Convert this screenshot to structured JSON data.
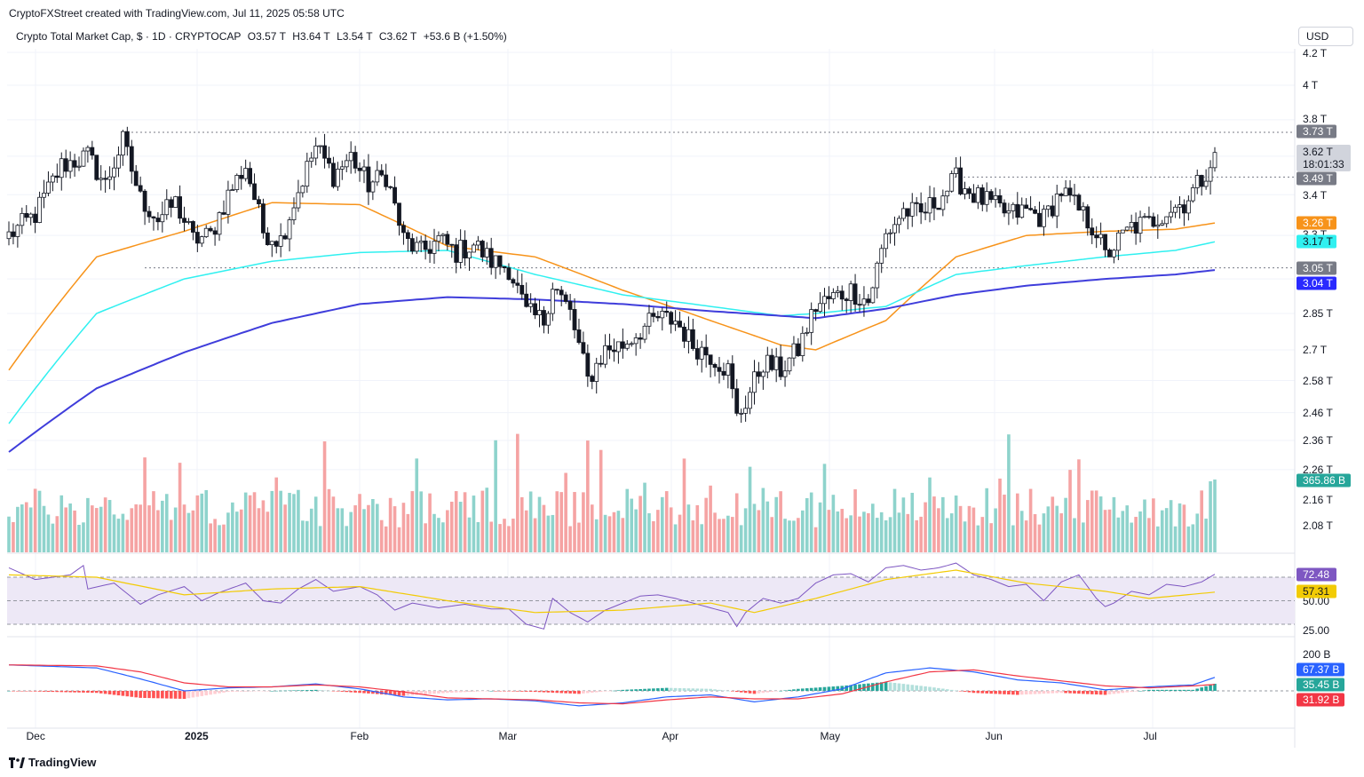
{
  "header": {
    "attribution": "CryptoFXStreet created with TradingView.com, Jul 11, 2025 05:58 UTC",
    "symbol": "Crypto Total Market Cap, $ · 1D · CRYPTOCAP",
    "open": "O3.57 T",
    "high": "H3.64 T",
    "low": "L3.54 T",
    "close": "C3.62 T",
    "change": "+53.6 B (+1.50%)"
  },
  "currency_button": "USD",
  "footer": {
    "logo_text": "TradingView"
  },
  "colors": {
    "up": "#26a69a",
    "down": "#ef5350",
    "candle_up_fill": "#ffffff",
    "candle_body": "#131722",
    "ma50": "#f7931a",
    "ma100": "#30f0f0",
    "ma200": "#3f3ddb",
    "rsi_line": "#7e57c2",
    "rsi_ma": "#f2cb05",
    "macd_line": "#2962ff",
    "signal_line": "#f23645"
  },
  "price_axis": {
    "ticks": [
      "4.2 T",
      "4 T",
      "3.8 T",
      "3.4 T",
      "3.3 T",
      "2.85 T",
      "2.7 T",
      "2.58 T",
      "2.46 T",
      "2.36 T",
      "2.26 T",
      "2.16 T",
      "2.08 T"
    ],
    "tags": [
      {
        "name": "resistance",
        "label": "3.73 T",
        "bg": "#787b86",
        "fg": "#ffffff"
      },
      {
        "name": "last-price",
        "label": "3.62 T",
        "sub": "18:01:33",
        "bg": "#d1d4dc",
        "fg": "#131722"
      },
      {
        "name": "mid-level",
        "label": "3.49 T",
        "bg": "#787b86",
        "fg": "#ffffff"
      },
      {
        "name": "ma50",
        "label": "3.26 T",
        "bg": "#f7931a",
        "fg": "#ffffff"
      },
      {
        "name": "ma100",
        "label": "3.17 T",
        "bg": "#30f0f0",
        "fg": "#131722"
      },
      {
        "name": "support",
        "label": "3.05 T",
        "bg": "#787b86",
        "fg": "#ffffff"
      },
      {
        "name": "ma200",
        "label": "3.04 T",
        "bg": "#2a2aff",
        "fg": "#ffffff"
      },
      {
        "name": "volume",
        "label": "365.86 B",
        "bg": "#26a69a",
        "fg": "#ffffff"
      }
    ]
  },
  "rsi_axis": {
    "ticks": [
      "50.00",
      "25.00"
    ],
    "tags": [
      {
        "name": "rsi",
        "label": "72.48",
        "bg": "#7e57c2",
        "fg": "#ffffff"
      },
      {
        "name": "rsi-ma",
        "label": "57.31",
        "bg": "#f2cb05",
        "fg": "#131722"
      }
    ]
  },
  "macd_axis": {
    "ticks": [
      "200 B"
    ],
    "tags": [
      {
        "name": "macd",
        "label": "67.37 B",
        "bg": "#2962ff",
        "fg": "#ffffff"
      },
      {
        "name": "histogram",
        "label": "35.45 B",
        "bg": "#26a69a",
        "fg": "#ffffff"
      },
      {
        "name": "signal",
        "label": "31.92 B",
        "bg": "#f23645",
        "fg": "#ffffff"
      }
    ]
  },
  "time_axis": [
    "Dec",
    "2025",
    "Feb",
    "Mar",
    "Apr",
    "May",
    "Jun",
    "Jul"
  ],
  "chart_data": {
    "type": "candlestick",
    "title": "Crypto Total Market Cap, $ · 1D · CRYPTOCAP",
    "unit": "T",
    "ylim": [
      2.2,
      4.25
    ],
    "y_scale": "log",
    "levels": [
      {
        "name": "resistance",
        "value": 3.73
      },
      {
        "name": "mid-level",
        "value": 3.49
      },
      {
        "name": "support",
        "value": 3.05
      }
    ],
    "x_months": [
      "Dec",
      "2025",
      "Feb",
      "Mar",
      "Apr",
      "May",
      "Jun",
      "Jul"
    ],
    "close_anchors": [
      [
        0,
        3.2
      ],
      [
        6,
        3.3
      ],
      [
        12,
        3.55
      ],
      [
        18,
        3.6
      ],
      [
        22,
        3.45
      ],
      [
        26,
        3.68
      ],
      [
        30,
        3.38
      ],
      [
        34,
        3.28
      ],
      [
        38,
        3.36
      ],
      [
        42,
        3.18
      ],
      [
        46,
        3.2
      ],
      [
        50,
        3.4
      ],
      [
        54,
        3.55
      ],
      [
        58,
        3.22
      ],
      [
        62,
        3.18
      ],
      [
        66,
        3.42
      ],
      [
        70,
        3.65
      ],
      [
        74,
        3.5
      ],
      [
        78,
        3.6
      ],
      [
        82,
        3.45
      ],
      [
        86,
        3.5
      ],
      [
        90,
        3.18
      ],
      [
        94,
        3.12
      ],
      [
        98,
        3.18
      ],
      [
        102,
        3.12
      ],
      [
        106,
        3.16
      ],
      [
        110,
        3.08
      ],
      [
        114,
        3.05
      ],
      [
        118,
        2.85
      ],
      [
        122,
        2.82
      ],
      [
        124,
        2.98
      ],
      [
        128,
        2.85
      ],
      [
        132,
        2.58
      ],
      [
        136,
        2.7
      ],
      [
        140,
        2.72
      ],
      [
        144,
        2.78
      ],
      [
        148,
        2.83
      ],
      [
        152,
        2.82
      ],
      [
        156,
        2.72
      ],
      [
        160,
        2.68
      ],
      [
        164,
        2.62
      ],
      [
        166,
        2.44
      ],
      [
        168,
        2.5
      ],
      [
        172,
        2.65
      ],
      [
        176,
        2.62
      ],
      [
        180,
        2.7
      ],
      [
        184,
        2.88
      ],
      [
        188,
        2.92
      ],
      [
        192,
        2.95
      ],
      [
        196,
        2.9
      ],
      [
        200,
        3.2
      ],
      [
        204,
        3.32
      ],
      [
        208,
        3.3
      ],
      [
        212,
        3.38
      ],
      [
        216,
        3.48
      ],
      [
        220,
        3.4
      ],
      [
        224,
        3.35
      ],
      [
        228,
        3.3
      ],
      [
        232,
        3.32
      ],
      [
        236,
        3.28
      ],
      [
        240,
        3.42
      ],
      [
        244,
        3.32
      ],
      [
        248,
        3.22
      ],
      [
        250,
        3.1
      ],
      [
        252,
        3.15
      ],
      [
        256,
        3.24
      ],
      [
        260,
        3.26
      ],
      [
        264,
        3.32
      ],
      [
        268,
        3.36
      ],
      [
        272,
        3.48
      ],
      [
        274,
        3.57
      ],
      [
        275,
        3.62
      ]
    ],
    "series": [
      {
        "name": "MA50",
        "values": [
          [
            0,
            2.62
          ],
          [
            20,
            3.1
          ],
          [
            40,
            3.22
          ],
          [
            60,
            3.36
          ],
          [
            80,
            3.35
          ],
          [
            100,
            3.15
          ],
          [
            120,
            3.1
          ],
          [
            140,
            2.95
          ],
          [
            160,
            2.82
          ],
          [
            176,
            2.72
          ],
          [
            184,
            2.7
          ],
          [
            200,
            2.82
          ],
          [
            216,
            3.1
          ],
          [
            232,
            3.2
          ],
          [
            250,
            3.22
          ],
          [
            266,
            3.23
          ],
          [
            275,
            3.26
          ]
        ]
      },
      {
        "name": "MA100",
        "values": [
          [
            0,
            2.42
          ],
          [
            20,
            2.85
          ],
          [
            40,
            3.0
          ],
          [
            60,
            3.08
          ],
          [
            80,
            3.12
          ],
          [
            100,
            3.13
          ],
          [
            120,
            3.02
          ],
          [
            140,
            2.93
          ],
          [
            160,
            2.88
          ],
          [
            176,
            2.84
          ],
          [
            184,
            2.85
          ],
          [
            200,
            2.88
          ],
          [
            216,
            3.02
          ],
          [
            232,
            3.06
          ],
          [
            250,
            3.1
          ],
          [
            266,
            3.13
          ],
          [
            275,
            3.17
          ]
        ]
      },
      {
        "name": "MA200",
        "values": [
          [
            0,
            2.32
          ],
          [
            20,
            2.55
          ],
          [
            40,
            2.69
          ],
          [
            60,
            2.81
          ],
          [
            80,
            2.89
          ],
          [
            100,
            2.92
          ],
          [
            120,
            2.91
          ],
          [
            140,
            2.89
          ],
          [
            160,
            2.86
          ],
          [
            176,
            2.84
          ],
          [
            184,
            2.83
          ],
          [
            200,
            2.87
          ],
          [
            216,
            2.93
          ],
          [
            232,
            2.97
          ],
          [
            250,
            3.0
          ],
          [
            266,
            3.02
          ],
          [
            275,
            3.04
          ]
        ]
      },
      {
        "name": "Volume",
        "last": "365.86 B"
      },
      {
        "name": "RSI",
        "last": 72.48,
        "values": [
          [
            0,
            78
          ],
          [
            6,
            68
          ],
          [
            14,
            72
          ],
          [
            17,
            80
          ],
          [
            18,
            60
          ],
          [
            24,
            65
          ],
          [
            30,
            47
          ],
          [
            34,
            55
          ],
          [
            40,
            62
          ],
          [
            44,
            50
          ],
          [
            48,
            57
          ],
          [
            54,
            65
          ],
          [
            58,
            50
          ],
          [
            62,
            48
          ],
          [
            66,
            60
          ],
          [
            70,
            68
          ],
          [
            74,
            58
          ],
          [
            80,
            62
          ],
          [
            84,
            55
          ],
          [
            88,
            42
          ],
          [
            92,
            48
          ],
          [
            98,
            44
          ],
          [
            104,
            47
          ],
          [
            110,
            43
          ],
          [
            114,
            43
          ],
          [
            118,
            30
          ],
          [
            122,
            26
          ],
          [
            124,
            52
          ],
          [
            128,
            40
          ],
          [
            132,
            32
          ],
          [
            136,
            42
          ],
          [
            140,
            48
          ],
          [
            144,
            54
          ],
          [
            148,
            55
          ],
          [
            152,
            52
          ],
          [
            156,
            48
          ],
          [
            160,
            44
          ],
          [
            164,
            40
          ],
          [
            166,
            28
          ],
          [
            168,
            40
          ],
          [
            172,
            52
          ],
          [
            176,
            48
          ],
          [
            180,
            52
          ],
          [
            184,
            65
          ],
          [
            188,
            72
          ],
          [
            192,
            73
          ],
          [
            196,
            66
          ],
          [
            200,
            78
          ],
          [
            204,
            80
          ],
          [
            208,
            76
          ],
          [
            212,
            78
          ],
          [
            216,
            82
          ],
          [
            220,
            72
          ],
          [
            224,
            68
          ],
          [
            228,
            62
          ],
          [
            232,
            64
          ],
          [
            236,
            50
          ],
          [
            240,
            66
          ],
          [
            244,
            72
          ],
          [
            248,
            52
          ],
          [
            250,
            45
          ],
          [
            252,
            48
          ],
          [
            256,
            58
          ],
          [
            260,
            55
          ],
          [
            264,
            64
          ],
          [
            268,
            62
          ],
          [
            272,
            66
          ],
          [
            275,
            72.48
          ]
        ]
      },
      {
        "name": "RSI MA",
        "last": 57.31,
        "values": [
          [
            0,
            72
          ],
          [
            20,
            70
          ],
          [
            40,
            55
          ],
          [
            60,
            60
          ],
          [
            80,
            62
          ],
          [
            100,
            50
          ],
          [
            120,
            40
          ],
          [
            140,
            42
          ],
          [
            160,
            48
          ],
          [
            170,
            40
          ],
          [
            184,
            52
          ],
          [
            200,
            68
          ],
          [
            216,
            76
          ],
          [
            232,
            65
          ],
          [
            250,
            58
          ],
          [
            260,
            52
          ],
          [
            275,
            57.31
          ]
        ]
      },
      {
        "name": "MACD",
        "last": 67.37,
        "values": [
          [
            0,
            130
          ],
          [
            20,
            115
          ],
          [
            30,
            60
          ],
          [
            40,
            0
          ],
          [
            50,
            15
          ],
          [
            60,
            20
          ],
          [
            70,
            35
          ],
          [
            80,
            10
          ],
          [
            90,
            -30
          ],
          [
            100,
            -45
          ],
          [
            110,
            -40
          ],
          [
            120,
            -50
          ],
          [
            130,
            -75
          ],
          [
            140,
            -60
          ],
          [
            150,
            -30
          ],
          [
            160,
            -20
          ],
          [
            170,
            -55
          ],
          [
            180,
            -30
          ],
          [
            190,
            10
          ],
          [
            200,
            90
          ],
          [
            210,
            115
          ],
          [
            220,
            95
          ],
          [
            230,
            55
          ],
          [
            240,
            40
          ],
          [
            250,
            5
          ],
          [
            260,
            20
          ],
          [
            270,
            30
          ],
          [
            275,
            67.37
          ]
        ]
      },
      {
        "name": "Signal",
        "last": 31.92,
        "values": [
          [
            0,
            130
          ],
          [
            20,
            125
          ],
          [
            30,
            95
          ],
          [
            40,
            40
          ],
          [
            50,
            20
          ],
          [
            60,
            20
          ],
          [
            70,
            30
          ],
          [
            80,
            20
          ],
          [
            90,
            -5
          ],
          [
            100,
            -35
          ],
          [
            110,
            -40
          ],
          [
            120,
            -45
          ],
          [
            130,
            -60
          ],
          [
            140,
            -65
          ],
          [
            150,
            -45
          ],
          [
            160,
            -30
          ],
          [
            170,
            -40
          ],
          [
            180,
            -40
          ],
          [
            190,
            -15
          ],
          [
            200,
            45
          ],
          [
            210,
            95
          ],
          [
            220,
            105
          ],
          [
            230,
            75
          ],
          [
            240,
            50
          ],
          [
            250,
            25
          ],
          [
            260,
            15
          ],
          [
            270,
            25
          ],
          [
            275,
            31.92
          ]
        ]
      },
      {
        "name": "Histogram",
        "last": 35.45
      }
    ]
  }
}
